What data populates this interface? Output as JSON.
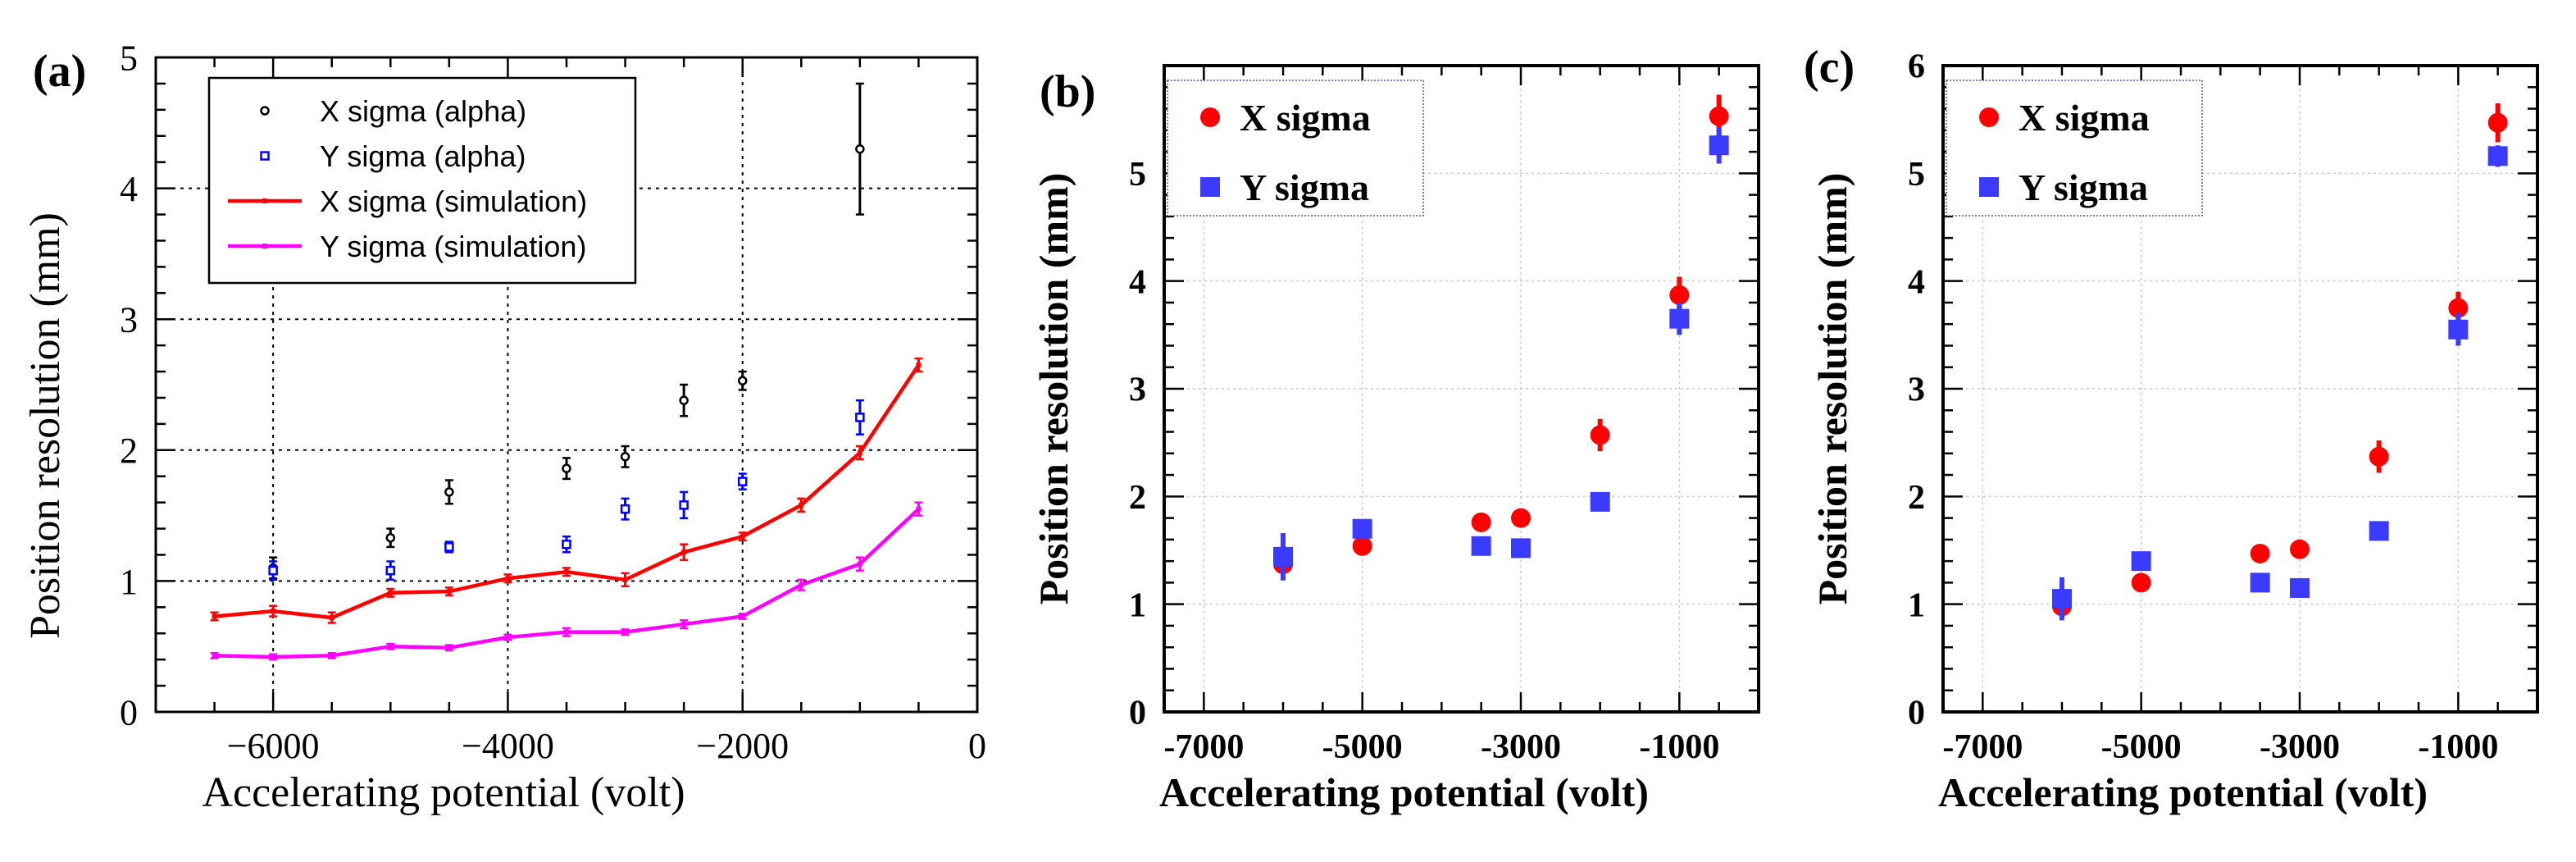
{
  "colors": {
    "axis": "#000000",
    "grid": "#000000",
    "grid_light": "#cccccc",
    "alpha_x": "#000000",
    "alpha_y": "#0000ff",
    "sim_x": "#ff0000",
    "sim_y": "#ff00ff",
    "x_marker": "#ff0000",
    "y_marker": "#3b3bff",
    "legend_border": "#7a3fa0"
  },
  "chart_data": [
    {
      "panel_label": "(a)",
      "type": "scatter",
      "xlabel": "Accelerating potential (volt)",
      "ylabel": "Position resolution (mm)",
      "xlim": [
        -7000,
        0
      ],
      "ylim": [
        0,
        5
      ],
      "xticks": [
        -6000,
        -4000,
        -2000,
        0
      ],
      "xtick_labels": [
        "−6000",
        "−4000",
        "−2000",
        "0"
      ],
      "yticks": [
        0,
        1,
        2,
        3,
        4,
        5
      ],
      "ytick_labels": [
        "0",
        "1",
        "2",
        "3",
        "4",
        "5"
      ],
      "grid": true,
      "legend_position": "top-left",
      "series": [
        {
          "name": "X sigma (alpha)",
          "kind": "errorbar",
          "marker": "open-circle",
          "color": "#000000",
          "x": [
            -6000,
            -5000,
            -4500,
            -3500,
            -3000,
            -2500,
            -2000,
            -1000
          ],
          "y": [
            1.1,
            1.33,
            1.68,
            1.86,
            1.95,
            2.38,
            2.53,
            4.3
          ],
          "err": [
            0.08,
            0.07,
            0.09,
            0.08,
            0.08,
            0.12,
            0.07,
            0.5
          ]
        },
        {
          "name": "Y sigma (alpha)",
          "kind": "errorbar",
          "marker": "open-square",
          "color": "#0000ff",
          "x": [
            -6000,
            -5000,
            -4500,
            -3500,
            -3000,
            -2500,
            -2000,
            -1000
          ],
          "y": [
            1.08,
            1.08,
            1.26,
            1.28,
            1.55,
            1.58,
            1.76,
            2.25
          ],
          "err": [
            0.07,
            0.07,
            0.04,
            0.06,
            0.08,
            0.1,
            0.06,
            0.13
          ]
        },
        {
          "name": "X sigma (simulation)",
          "kind": "line",
          "color": "#ff0000",
          "x": [
            -6500,
            -6000,
            -5500,
            -5000,
            -4500,
            -4000,
            -3500,
            -3000,
            -2500,
            -2000,
            -1500,
            -1000,
            -500
          ],
          "y": [
            0.73,
            0.77,
            0.72,
            0.91,
            0.92,
            1.02,
            1.07,
            1.01,
            1.22,
            1.34,
            1.58,
            1.98,
            2.65
          ],
          "err": [
            0.03,
            0.04,
            0.04,
            0.03,
            0.03,
            0.03,
            0.03,
            0.05,
            0.06,
            0.03,
            0.05,
            0.05,
            0.05
          ]
        },
        {
          "name": "Y sigma (simulation)",
          "kind": "line",
          "color": "#ff00ff",
          "x": [
            -6500,
            -6000,
            -5500,
            -5000,
            -4500,
            -4000,
            -3500,
            -3000,
            -2500,
            -2000,
            -1500,
            -1000,
            -500
          ],
          "y": [
            0.43,
            0.42,
            0.43,
            0.5,
            0.49,
            0.57,
            0.61,
            0.61,
            0.67,
            0.73,
            0.97,
            1.13,
            1.55
          ],
          "err": [
            0.02,
            0.02,
            0.02,
            0.02,
            0.02,
            0.02,
            0.03,
            0.02,
            0.03,
            0.02,
            0.04,
            0.05,
            0.05
          ]
        }
      ]
    },
    {
      "panel_label": "(b)",
      "type": "scatter",
      "xlabel": "Accelerating potential (volt)",
      "ylabel": "Position resolution (mm)",
      "xlim": [
        -7500,
        0
      ],
      "ylim": [
        0,
        6
      ],
      "xticks": [
        -7000,
        -5000,
        -3000,
        -1000
      ],
      "xtick_labels": [
        "-7000",
        "-5000",
        "-3000",
        "-1000"
      ],
      "yticks": [
        0,
        1,
        2,
        3,
        4,
        5
      ],
      "ytick_labels": [
        "0",
        "1",
        "2",
        "3",
        "4",
        "5"
      ],
      "grid": true,
      "legend_position": "top-left",
      "series": [
        {
          "name": "X sigma",
          "marker": "filled-circle",
          "color": "#ff0000",
          "x": [
            -6000,
            -5000,
            -3500,
            -3000,
            -2000,
            -1000,
            -500
          ],
          "y": [
            1.37,
            1.54,
            1.76,
            1.8,
            2.57,
            3.87,
            5.53
          ],
          "err": [
            0.12,
            0.05,
            0.04,
            0.04,
            0.15,
            0.17,
            0.2
          ]
        },
        {
          "name": "Y sigma",
          "marker": "filled-square",
          "color": "#3b3bff",
          "x": [
            -6000,
            -5000,
            -3500,
            -3000,
            -2000,
            -1000,
            -500
          ],
          "y": [
            1.44,
            1.7,
            1.54,
            1.52,
            1.95,
            3.65,
            5.26
          ],
          "err": [
            0.22,
            0.08,
            0.05,
            0.04,
            0.06,
            0.15,
            0.17
          ]
        }
      ]
    },
    {
      "panel_label": "(c)",
      "type": "scatter",
      "xlabel": "Accelerating potential (volt)",
      "ylabel": "Position resolution (mm)",
      "xlim": [
        -7500,
        0
      ],
      "ylim": [
        0,
        6
      ],
      "xticks": [
        -7000,
        -5000,
        -3000,
        -1000
      ],
      "xtick_labels": [
        "-7000",
        "-5000",
        "-3000",
        "-1000"
      ],
      "yticks": [
        0,
        1,
        2,
        3,
        4,
        5,
        6
      ],
      "ytick_labels": [
        "0",
        "1",
        "2",
        "3",
        "4",
        "5",
        "6"
      ],
      "grid": true,
      "legend_position": "top-left",
      "series": [
        {
          "name": "X sigma",
          "marker": "filled-circle",
          "color": "#ff0000",
          "x": [
            -6000,
            -5000,
            -3500,
            -3000,
            -2000,
            -1000,
            -500
          ],
          "y": [
            0.98,
            1.2,
            1.47,
            1.51,
            2.37,
            3.75,
            5.47
          ],
          "err": [
            0.12,
            0.04,
            0.04,
            0.04,
            0.15,
            0.15,
            0.18
          ]
        },
        {
          "name": "Y sigma",
          "marker": "filled-square",
          "color": "#3b3bff",
          "x": [
            -6000,
            -5000,
            -3500,
            -3000,
            -2000,
            -1000,
            -500
          ],
          "y": [
            1.05,
            1.4,
            1.2,
            1.15,
            1.68,
            3.55,
            5.16
          ],
          "err": [
            0.2,
            0.08,
            0.05,
            0.04,
            0.06,
            0.15,
            0.1
          ]
        }
      ]
    }
  ]
}
